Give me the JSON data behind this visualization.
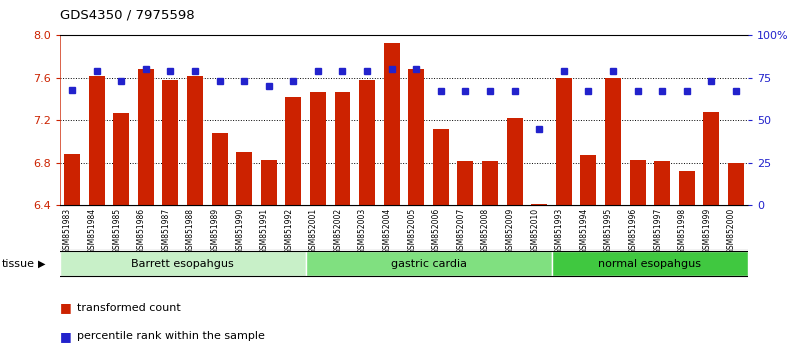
{
  "title": "GDS4350 / 7975598",
  "samples": [
    "GSM851983",
    "GSM851984",
    "GSM851985",
    "GSM851986",
    "GSM851987",
    "GSM851988",
    "GSM851989",
    "GSM851990",
    "GSM851991",
    "GSM851992",
    "GSM852001",
    "GSM852002",
    "GSM852003",
    "GSM852004",
    "GSM852005",
    "GSM852006",
    "GSM852007",
    "GSM852008",
    "GSM852009",
    "GSM852010",
    "GSM851993",
    "GSM851994",
    "GSM851995",
    "GSM851996",
    "GSM851997",
    "GSM851998",
    "GSM851999",
    "GSM852000"
  ],
  "bar_values": [
    6.88,
    7.62,
    7.27,
    7.68,
    7.58,
    7.62,
    7.08,
    6.9,
    6.83,
    7.42,
    7.47,
    7.47,
    7.58,
    7.93,
    7.68,
    7.12,
    6.82,
    6.82,
    7.22,
    6.41,
    7.6,
    6.87,
    7.6,
    6.83,
    6.82,
    6.72,
    7.28,
    6.8
  ],
  "pct_values": [
    68,
    79,
    73,
    80,
    79,
    79,
    73,
    73,
    70,
    73,
    79,
    79,
    79,
    80,
    80,
    67,
    67,
    67,
    67,
    45,
    79,
    67,
    79,
    67,
    67,
    67,
    73,
    67
  ],
  "groups": [
    {
      "label": "Barrett esopahgus",
      "start": 0,
      "end": 10,
      "color": "#c8f0c8"
    },
    {
      "label": "gastric cardia",
      "start": 10,
      "end": 20,
      "color": "#80e080"
    },
    {
      "label": "normal esopahgus",
      "start": 20,
      "end": 28,
      "color": "#40c840"
    }
  ],
  "ylim_left": [
    6.4,
    8.0
  ],
  "ylim_right": [
    0,
    100
  ],
  "yticks_left": [
    6.4,
    6.8,
    7.2,
    7.6,
    8.0
  ],
  "yticks_right": [
    0,
    25,
    50,
    75,
    100
  ],
  "ytick_labels_right": [
    "0",
    "25",
    "50",
    "75",
    "100%"
  ],
  "grid_values": [
    6.8,
    7.2,
    7.6
  ],
  "bar_color": "#cc2200",
  "dot_color": "#2222cc",
  "bar_width": 0.65,
  "tissue_label": "tissue",
  "legend_bar": "transformed count",
  "legend_dot": "percentile rank within the sample",
  "background_color": "#ffffff",
  "tick_bg_color": "#d0d0d0"
}
